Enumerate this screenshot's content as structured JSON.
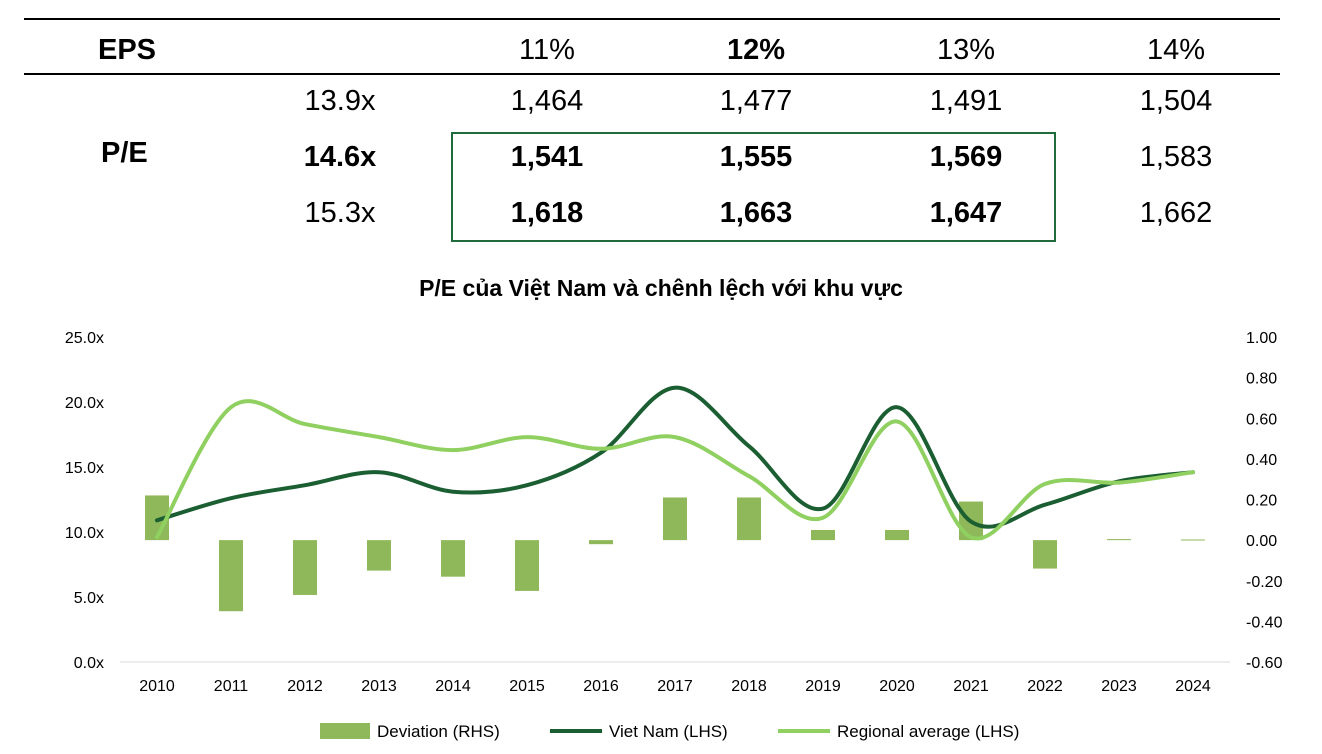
{
  "table": {
    "eps_label": "EPS",
    "pe_label": "P/E",
    "eps_headers": [
      "11%",
      "12%",
      "13%",
      "14%"
    ],
    "rows": [
      {
        "pe": "13.9x",
        "values": [
          "1,464",
          "1,477",
          "1,491",
          "1,504"
        ]
      },
      {
        "pe": "14.6x",
        "values": [
          "1,541",
          "1,555",
          "1,569",
          "1,583"
        ]
      },
      {
        "pe": "15.3x",
        "values": [
          "1,618",
          "1,663",
          "1,647",
          "1,662"
        ]
      }
    ]
  },
  "chart_data": {
    "type": "bar+line",
    "title": "P/E của Việt Nam và chênh lệch với khu vực",
    "categories": [
      "2010",
      "2011",
      "2012",
      "2013",
      "2014",
      "2015",
      "2016",
      "2017",
      "2018",
      "2019",
      "2020",
      "2021",
      "2022",
      "2023",
      "2024"
    ],
    "left_axis": {
      "ylim": [
        0,
        25
      ],
      "ticks": [
        "0.0x",
        "5.0x",
        "10.0x",
        "15.0x",
        "20.0x",
        "25.0x"
      ],
      "tick_values": [
        0,
        5,
        10,
        15,
        20,
        25
      ]
    },
    "right_axis": {
      "ylim": [
        -0.6,
        1.0
      ],
      "ticks": [
        "-0.60",
        "-0.40",
        "-0.20",
        "0.00",
        "0.20",
        "0.40",
        "0.60",
        "0.80",
        "1.00"
      ],
      "tick_values": [
        -0.6,
        -0.4,
        -0.2,
        0,
        0.2,
        0.4,
        0.6,
        0.8,
        1.0
      ]
    },
    "series": [
      {
        "name": "Deviation (RHS)",
        "kind": "bar",
        "axis": "right",
        "color": "#8fb85a",
        "values": [
          0.22,
          -0.35,
          -0.27,
          -0.15,
          -0.18,
          -0.25,
          -0.02,
          0.21,
          0.21,
          0.05,
          0.05,
          0.19,
          -0.14,
          0.005,
          0.003
        ]
      },
      {
        "name": "Viet Nam (LHS)",
        "kind": "line",
        "axis": "left",
        "color": "#1b5e32",
        "values": [
          10.9,
          12.6,
          13.6,
          14.6,
          13.1,
          13.6,
          16.1,
          21.1,
          16.6,
          11.8,
          19.6,
          10.8,
          12.1,
          13.9,
          14.6
        ]
      },
      {
        "name": "Regional average (LHS)",
        "kind": "line",
        "axis": "left",
        "color": "#8fd060",
        "values": [
          9.6,
          19.6,
          18.3,
          17.3,
          16.3,
          17.3,
          16.4,
          17.3,
          14.3,
          11.1,
          18.5,
          9.6,
          13.7,
          13.8,
          14.6
        ]
      }
    ],
    "legend": [
      "Deviation (RHS)",
      "Viet Nam (LHS)",
      "Regional average (LHS)"
    ],
    "legend_position": "bottom"
  }
}
